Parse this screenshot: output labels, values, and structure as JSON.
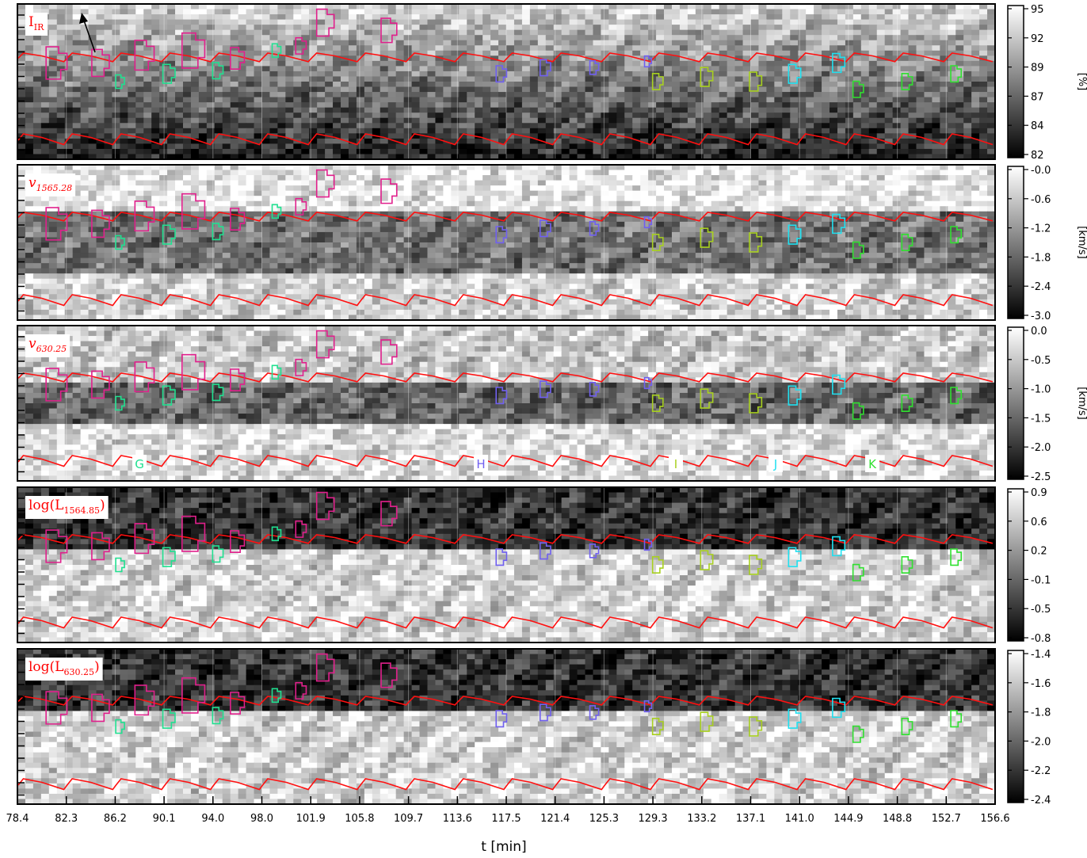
{
  "chart_data": {
    "type": "heatmap",
    "colormap": "grayscale",
    "xlabel": "t [min]",
    "x_ticks": [
      "78.4",
      "82.3",
      "86.2",
      "90.1",
      "94.0",
      "98.0",
      "101.9",
      "105.8",
      "109.7",
      "113.6",
      "117.5",
      "121.4",
      "125.3",
      "129.3",
      "133.2",
      "137.1",
      "141.0",
      "144.9",
      "148.8",
      "152.7",
      "156.6"
    ],
    "xlim": [
      78.4,
      156.6
    ],
    "panels": [
      {
        "id": "p1",
        "label_main": "I",
        "label_sub": "IR",
        "label_tail": "",
        "colorbar_ticks": [
          "95",
          "92",
          "89",
          "87",
          "84",
          "82"
        ],
        "colorbar_unit": "[%]",
        "has_arrow": true
      },
      {
        "id": "p2",
        "label_main": "v",
        "label_sub": "1565.28",
        "label_tail": "",
        "colorbar_ticks": [
          "-0.0",
          "-0.6",
          "-1.2",
          "-1.8",
          "-2.4",
          "-3.0"
        ],
        "colorbar_unit": "[km/s]"
      },
      {
        "id": "p3",
        "label_main": "v",
        "label_sub": "630.25",
        "label_tail": "",
        "colorbar_ticks": [
          "0.0",
          "-0.5",
          "-1.0",
          "-1.5",
          "-2.0",
          "-2.5"
        ],
        "colorbar_unit": "[km/s]",
        "letters": [
          "G",
          "H",
          "I",
          "J",
          "K"
        ]
      },
      {
        "id": "p4",
        "label_main": "log(L",
        "label_sub": "1564.85",
        "label_tail": ")",
        "colorbar_ticks": [
          "0.9",
          "0.6",
          "0.2",
          "-0.1",
          "-0.5",
          "-0.8"
        ],
        "colorbar_unit": ""
      },
      {
        "id": "p5",
        "label_main": "log(L",
        "label_sub": "630.25",
        "label_tail": ")",
        "colorbar_ticks": [
          "-1.4",
          "-1.6",
          "-1.8",
          "-2.0",
          "-2.2",
          "-2.4"
        ],
        "colorbar_unit": ""
      }
    ],
    "region_colors": {
      "group_F": "#e0208c",
      "group_G": "#20e090",
      "group_H": "#7060f0",
      "group_I": "#a8d020",
      "group_J": "#20e0f0",
      "group_K": "#30e030"
    },
    "boundary_line_color": "#ff1010"
  }
}
